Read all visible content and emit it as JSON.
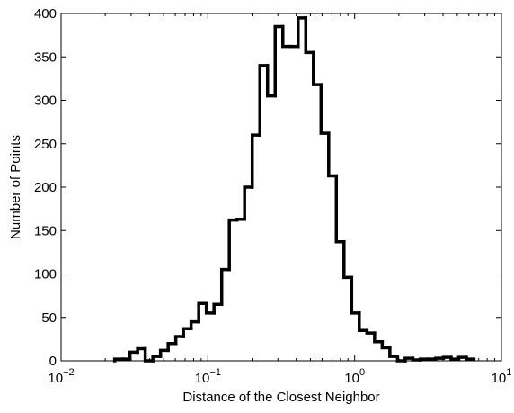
{
  "chart_data": {
    "type": "histogram",
    "xlabel": "Distance of the Closest Neighbor",
    "ylabel": "Number of Points",
    "color": "#000000",
    "xscale": "log",
    "xlim": [
      0.01,
      10
    ],
    "xticks": [
      {
        "value": 0.01,
        "label": "10",
        "exponent": "−2"
      },
      {
        "value": 0.1,
        "label": "10",
        "exponent": "−1"
      },
      {
        "value": 1,
        "label": "10",
        "exponent": "0"
      },
      {
        "value": 10,
        "label": "10",
        "exponent": "1"
      }
    ],
    "ylim": [
      0,
      400
    ],
    "yticks": [
      0,
      50,
      100,
      150,
      200,
      250,
      300,
      350,
      400
    ],
    "bins": [
      0.02317,
      0.02612,
      0.02945,
      0.0332,
      0.03743,
      0.0422,
      0.04758,
      0.05364,
      0.06047,
      0.06817,
      0.07686,
      0.08665,
      0.09769,
      0.1101,
      0.1242,
      0.14,
      0.1578,
      0.1779,
      0.2006,
      0.2262,
      0.255,
      0.2875,
      0.3241,
      0.3654,
      0.412,
      0.4645,
      0.5237,
      0.5904,
      0.6656,
      0.7504,
      0.846,
      0.9538,
      1.075,
      1.212,
      1.367,
      1.541,
      1.737,
      1.958,
      2.208,
      2.489,
      2.806,
      3.164,
      3.567,
      4.021,
      4.534,
      5.111,
      5.762,
      6.497
    ],
    "counts": [
      2,
      2,
      10,
      14,
      0,
      5,
      12,
      20,
      28,
      37,
      45,
      66,
      55,
      65,
      105,
      162,
      163,
      200,
      260,
      340,
      305,
      385,
      362,
      362,
      395,
      355,
      318,
      262,
      213,
      137,
      96,
      55,
      35,
      32,
      22,
      15,
      5,
      0,
      3,
      1,
      2,
      2,
      3,
      4,
      2,
      4,
      2
    ]
  }
}
